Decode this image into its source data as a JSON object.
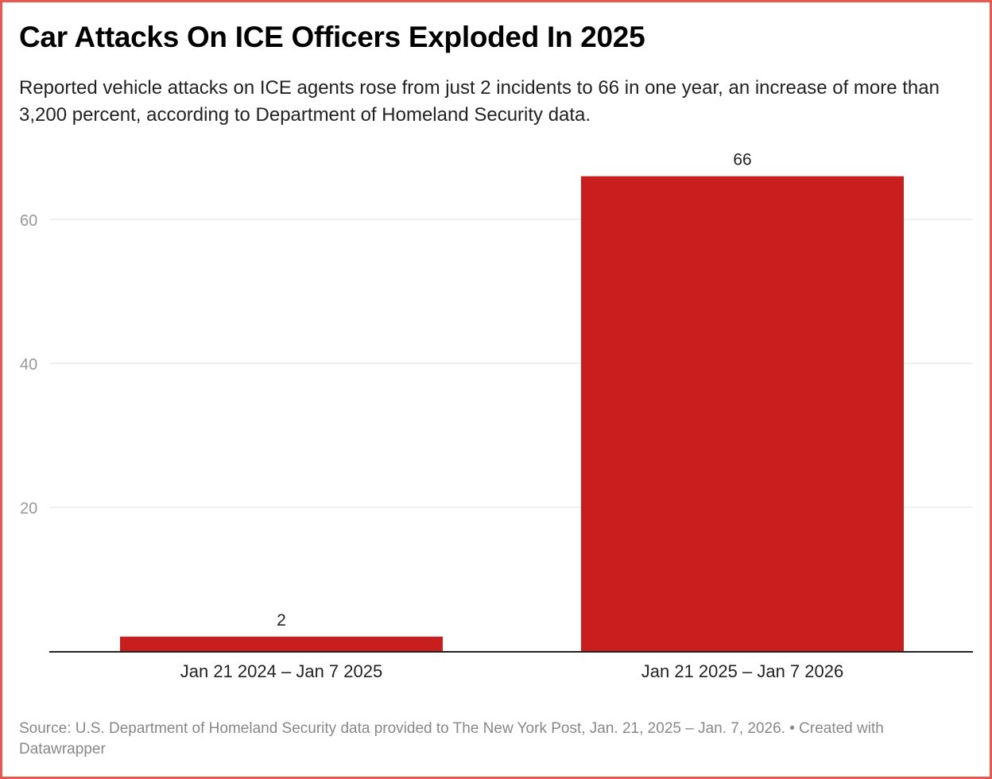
{
  "title": "Car Attacks On ICE Officers Exploded In 2025",
  "subtitle": "Reported vehicle attacks on ICE agents rose from just 2 incidents to 66 in one year, an increase of more than 3,200 percent, according to Department of Homeland Security data.",
  "source": "Source: U.S. Department of Homeland Security data provided to The New York Post, Jan. 21, 2025 – Jan. 7, 2026. • Created with Datawrapper",
  "colors": {
    "bar": "#c91e1e",
    "border": "#e8594f",
    "grid": "#e0e0e0",
    "tick_label": "#999999"
  },
  "chart_data": {
    "type": "bar",
    "categories": [
      "Jan 21 2024 – Jan 7 2025",
      "Jan 21 2025 – Jan 7 2026"
    ],
    "values": [
      2,
      66
    ],
    "data_labels": [
      "2",
      "66"
    ],
    "yticks": [
      20,
      40,
      60
    ],
    "ylim": [
      0,
      66
    ],
    "grid": true
  }
}
